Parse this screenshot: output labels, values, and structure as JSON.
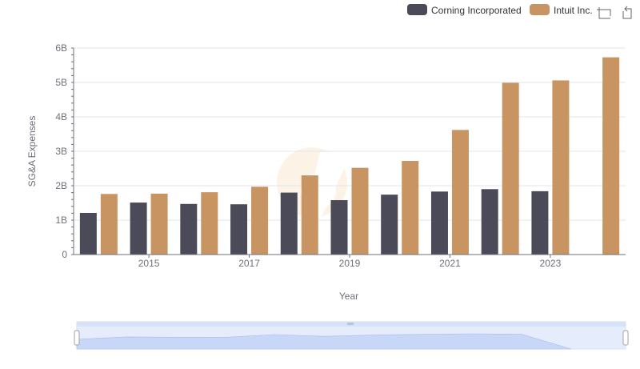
{
  "chart_data": {
    "type": "bar",
    "title": "",
    "xlabel": "Year",
    "ylabel": "SG&A Expenses",
    "ylim": [
      0,
      6000000000
    ],
    "yticks": [
      {
        "value": 0,
        "label": "0"
      },
      {
        "value": 1000000000,
        "label": "1B"
      },
      {
        "value": 2000000000,
        "label": "2B"
      },
      {
        "value": 3000000000,
        "label": "3B"
      },
      {
        "value": 4000000000,
        "label": "4B"
      },
      {
        "value": 5000000000,
        "label": "5B"
      },
      {
        "value": 6000000000,
        "label": "6B"
      }
    ],
    "categories": [
      "2014",
      "2015",
      "2016",
      "2017",
      "2018",
      "2019",
      "2020",
      "2021",
      "2022",
      "2023",
      "2024"
    ],
    "xtick_labels": [
      "2015",
      "2017",
      "2019",
      "2021",
      "2023"
    ],
    "grid": true,
    "legend_position": "top-right",
    "series": [
      {
        "name": "Corning Incorporated",
        "color": "#4a4a58",
        "values": [
          1210000000,
          1510000000,
          1470000000,
          1460000000,
          1800000000,
          1580000000,
          1740000000,
          1830000000,
          1900000000,
          1840000000,
          null
        ]
      },
      {
        "name": "Intuit Inc.",
        "color": "#c89462",
        "values": [
          1760000000,
          1770000000,
          1810000000,
          1970000000,
          2300000000,
          2520000000,
          2720000000,
          3620000000,
          4990000000,
          5060000000,
          5730000000
        ]
      }
    ]
  },
  "toolbar": {
    "zoom_icon": "zoom-select-icon",
    "reset_icon": "zoom-reset-icon"
  }
}
